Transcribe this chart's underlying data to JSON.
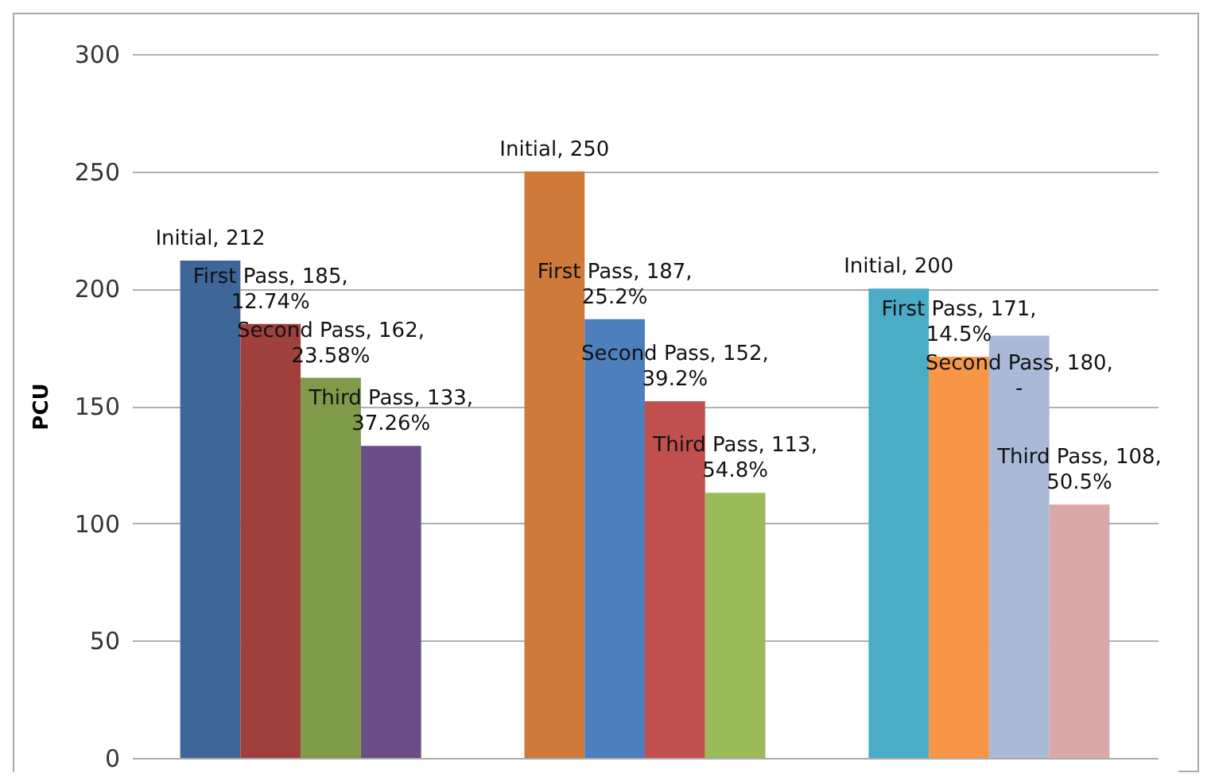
{
  "chart_data": {
    "type": "bar",
    "categories": [
      null,
      null,
      null
    ],
    "ylabel": "PCU",
    "ylim": [
      0,
      300
    ],
    "yticks": [
      0,
      50,
      100,
      150,
      200,
      250,
      300
    ],
    "grid": "y",
    "tick_labels": "y",
    "series": [
      {
        "values": [
          212,
          250,
          200
        ],
        "colors": [
          "#3f6699",
          "#cd7a3a",
          "#4bacc6"
        ],
        "value_labels": [
          "Initial, 212",
          "Initial, 250",
          "Initial, 200"
        ]
      },
      {
        "values": [
          185,
          187,
          171
        ],
        "colors": [
          "#a0403d",
          "#4e7fbd",
          "#f79646"
        ],
        "value_labels": [
          "First Pass, 185, 12.74%",
          "First Pass, 187, 25.2%",
          "First Pass, 171, 14.5%"
        ]
      },
      {
        "values": [
          162,
          152,
          180
        ],
        "colors": [
          "#7f9b4a",
          "#c0504d",
          "#aab9d8"
        ],
        "value_labels": [
          "Second Pass, 162, 23.58%",
          "Second Pass, 152, 39.2%",
          "Second Pass, 180, -"
        ]
      },
      {
        "values": [
          133,
          113,
          108
        ],
        "colors": [
          "#6a4f86",
          "#9bbb59",
          "#d9a9a9"
        ],
        "value_labels": [
          "Third Pass, 133, 37.26%",
          "Third Pass, 113, 54.8%",
          "Third Pass, 108, 50.5%"
        ]
      }
    ]
  }
}
